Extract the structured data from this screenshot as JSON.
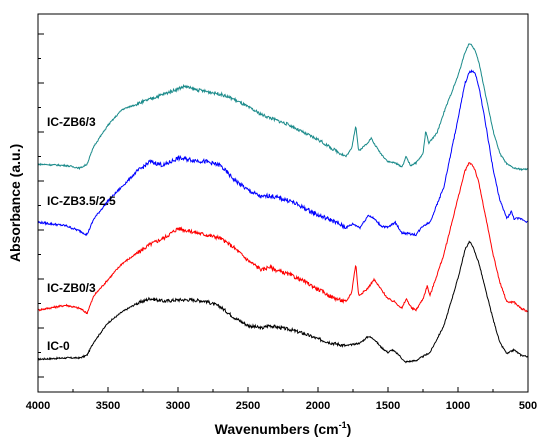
{
  "chart_data": {
    "type": "line",
    "xlabel": "Wavenumbers (cm",
    "xlabel_superscript": "-1",
    "xlabel_suffix": ")",
    "ylabel": "Absorbance (a.u.)",
    "xlim": [
      4000,
      500
    ],
    "x_reversed": true,
    "xticks": [
      "4000",
      "3500",
      "3000",
      "2500",
      "2000",
      "1500",
      "1000",
      "500"
    ],
    "ytick_labels_shown": false,
    "grid": false,
    "series": [
      {
        "name": "IC-0",
        "color": "#000000",
        "points": [
          [
            4000,
            0.05
          ],
          [
            3800,
            0.06
          ],
          [
            3700,
            0.06
          ],
          [
            3650,
            0.08
          ],
          [
            3600,
            0.18
          ],
          [
            3500,
            0.32
          ],
          [
            3400,
            0.4
          ],
          [
            3300,
            0.46
          ],
          [
            3200,
            0.5
          ],
          [
            3100,
            0.48
          ],
          [
            3000,
            0.49
          ],
          [
            2900,
            0.49
          ],
          [
            2800,
            0.48
          ],
          [
            2700,
            0.44
          ],
          [
            2600,
            0.36
          ],
          [
            2500,
            0.3
          ],
          [
            2400,
            0.28
          ],
          [
            2350,
            0.3
          ],
          [
            2300,
            0.29
          ],
          [
            2200,
            0.27
          ],
          [
            2100,
            0.24
          ],
          [
            2000,
            0.2
          ],
          [
            1900,
            0.17
          ],
          [
            1800,
            0.15
          ],
          [
            1700,
            0.17
          ],
          [
            1640,
            0.22
          ],
          [
            1600,
            0.2
          ],
          [
            1550,
            0.14
          ],
          [
            1500,
            0.1
          ],
          [
            1470,
            0.12
          ],
          [
            1420,
            0.08
          ],
          [
            1380,
            0.03
          ],
          [
            1300,
            0.04
          ],
          [
            1200,
            0.1
          ],
          [
            1100,
            0.3
          ],
          [
            1000,
            0.65
          ],
          [
            950,
            0.86
          ],
          [
            920,
            0.92
          ],
          [
            900,
            0.9
          ],
          [
            850,
            0.76
          ],
          [
            800,
            0.55
          ],
          [
            750,
            0.35
          ],
          [
            700,
            0.17
          ],
          [
            650,
            0.09
          ],
          [
            600,
            0.12
          ],
          [
            550,
            0.08
          ],
          [
            500,
            0.07
          ]
        ]
      },
      {
        "name": "IC-ZB0/3",
        "color": "#ff0000",
        "points": [
          [
            4000,
            0.05
          ],
          [
            3800,
            0.08
          ],
          [
            3700,
            0.06
          ],
          [
            3650,
            0.03
          ],
          [
            3600,
            0.14
          ],
          [
            3500,
            0.24
          ],
          [
            3400,
            0.34
          ],
          [
            3300,
            0.4
          ],
          [
            3200,
            0.46
          ],
          [
            3100,
            0.5
          ],
          [
            3000,
            0.56
          ],
          [
            2900,
            0.54
          ],
          [
            2800,
            0.52
          ],
          [
            2700,
            0.5
          ],
          [
            2600,
            0.44
          ],
          [
            2500,
            0.36
          ],
          [
            2400,
            0.3
          ],
          [
            2350,
            0.32
          ],
          [
            2300,
            0.3
          ],
          [
            2200,
            0.27
          ],
          [
            2100,
            0.23
          ],
          [
            2000,
            0.18
          ],
          [
            1900,
            0.13
          ],
          [
            1800,
            0.1
          ],
          [
            1760,
            0.16
          ],
          [
            1730,
            0.34
          ],
          [
            1710,
            0.14
          ],
          [
            1650,
            0.18
          ],
          [
            1600,
            0.24
          ],
          [
            1550,
            0.18
          ],
          [
            1500,
            0.12
          ],
          [
            1450,
            0.1
          ],
          [
            1400,
            0.06
          ],
          [
            1370,
            0.12
          ],
          [
            1330,
            0.06
          ],
          [
            1300,
            0.05
          ],
          [
            1250,
            0.12
          ],
          [
            1220,
            0.2
          ],
          [
            1200,
            0.14
          ],
          [
            1100,
            0.4
          ],
          [
            1000,
            0.75
          ],
          [
            950,
            0.92
          ],
          [
            920,
            0.97
          ],
          [
            900,
            0.96
          ],
          [
            880,
            0.93
          ],
          [
            850,
            0.84
          ],
          [
            800,
            0.62
          ],
          [
            750,
            0.4
          ],
          [
            700,
            0.22
          ],
          [
            650,
            0.1
          ],
          [
            600,
            0.1
          ],
          [
            550,
            0.06
          ],
          [
            500,
            0.04
          ]
        ]
      },
      {
        "name": "IC-ZB3.5/2.5",
        "color": "#0000ff",
        "points": [
          [
            4000,
            0.1
          ],
          [
            3800,
            0.08
          ],
          [
            3700,
            0.05
          ],
          [
            3650,
            0.03
          ],
          [
            3600,
            0.12
          ],
          [
            3500,
            0.22
          ],
          [
            3400,
            0.3
          ],
          [
            3300,
            0.38
          ],
          [
            3200,
            0.44
          ],
          [
            3100,
            0.42
          ],
          [
            3000,
            0.46
          ],
          [
            2900,
            0.45
          ],
          [
            2800,
            0.44
          ],
          [
            2700,
            0.42
          ],
          [
            2600,
            0.34
          ],
          [
            2500,
            0.28
          ],
          [
            2400,
            0.24
          ],
          [
            2350,
            0.25
          ],
          [
            2300,
            0.24
          ],
          [
            2200,
            0.22
          ],
          [
            2100,
            0.18
          ],
          [
            2000,
            0.14
          ],
          [
            1900,
            0.11
          ],
          [
            1800,
            0.07
          ],
          [
            1750,
            0.09
          ],
          [
            1700,
            0.07
          ],
          [
            1640,
            0.14
          ],
          [
            1600,
            0.12
          ],
          [
            1550,
            0.08
          ],
          [
            1500,
            0.07
          ],
          [
            1450,
            0.1
          ],
          [
            1400,
            0.04
          ],
          [
            1300,
            0.03
          ],
          [
            1250,
            0.08
          ],
          [
            1200,
            0.1
          ],
          [
            1100,
            0.3
          ],
          [
            1000,
            0.68
          ],
          [
            950,
            0.88
          ],
          [
            920,
            0.94
          ],
          [
            900,
            0.95
          ],
          [
            880,
            0.94
          ],
          [
            850,
            0.86
          ],
          [
            800,
            0.64
          ],
          [
            750,
            0.4
          ],
          [
            700,
            0.22
          ],
          [
            650,
            0.12
          ],
          [
            620,
            0.16
          ],
          [
            600,
            0.12
          ],
          [
            550,
            0.12
          ],
          [
            500,
            0.1
          ]
        ]
      },
      {
        "name": "IC-ZB6/3",
        "color": "#1a8a8a",
        "points": [
          [
            4000,
            0.06
          ],
          [
            3800,
            0.05
          ],
          [
            3700,
            0.03
          ],
          [
            3650,
            0.06
          ],
          [
            3600,
            0.2
          ],
          [
            3500,
            0.36
          ],
          [
            3400,
            0.48
          ],
          [
            3300,
            0.52
          ],
          [
            3200,
            0.56
          ],
          [
            3100,
            0.6
          ],
          [
            3000,
            0.64
          ],
          [
            2950,
            0.66
          ],
          [
            2900,
            0.64
          ],
          [
            2800,
            0.62
          ],
          [
            2700,
            0.6
          ],
          [
            2600,
            0.56
          ],
          [
            2500,
            0.5
          ],
          [
            2400,
            0.44
          ],
          [
            2300,
            0.4
          ],
          [
            2200,
            0.36
          ],
          [
            2100,
            0.3
          ],
          [
            2000,
            0.25
          ],
          [
            1900,
            0.18
          ],
          [
            1800,
            0.12
          ],
          [
            1760,
            0.18
          ],
          [
            1730,
            0.36
          ],
          [
            1710,
            0.16
          ],
          [
            1650,
            0.22
          ],
          [
            1620,
            0.26
          ],
          [
            1600,
            0.22
          ],
          [
            1550,
            0.14
          ],
          [
            1500,
            0.08
          ],
          [
            1450,
            0.07
          ],
          [
            1400,
            0.04
          ],
          [
            1370,
            0.12
          ],
          [
            1340,
            0.05
          ],
          [
            1300,
            0.07
          ],
          [
            1250,
            0.14
          ],
          [
            1230,
            0.32
          ],
          [
            1210,
            0.22
          ],
          [
            1150,
            0.3
          ],
          [
            1100,
            0.46
          ],
          [
            1000,
            0.74
          ],
          [
            950,
            0.92
          ],
          [
            920,
            0.99
          ],
          [
            900,
            0.97
          ],
          [
            880,
            0.94
          ],
          [
            850,
            0.84
          ],
          [
            800,
            0.58
          ],
          [
            750,
            0.32
          ],
          [
            700,
            0.14
          ],
          [
            650,
            0.06
          ],
          [
            600,
            0.03
          ],
          [
            550,
            0.02
          ],
          [
            500,
            0.02
          ]
        ]
      }
    ],
    "labels": [
      "IC-0",
      "IC-ZB0/3",
      "IC-ZB3.5/2.5",
      "IC-ZB6/3"
    ]
  }
}
